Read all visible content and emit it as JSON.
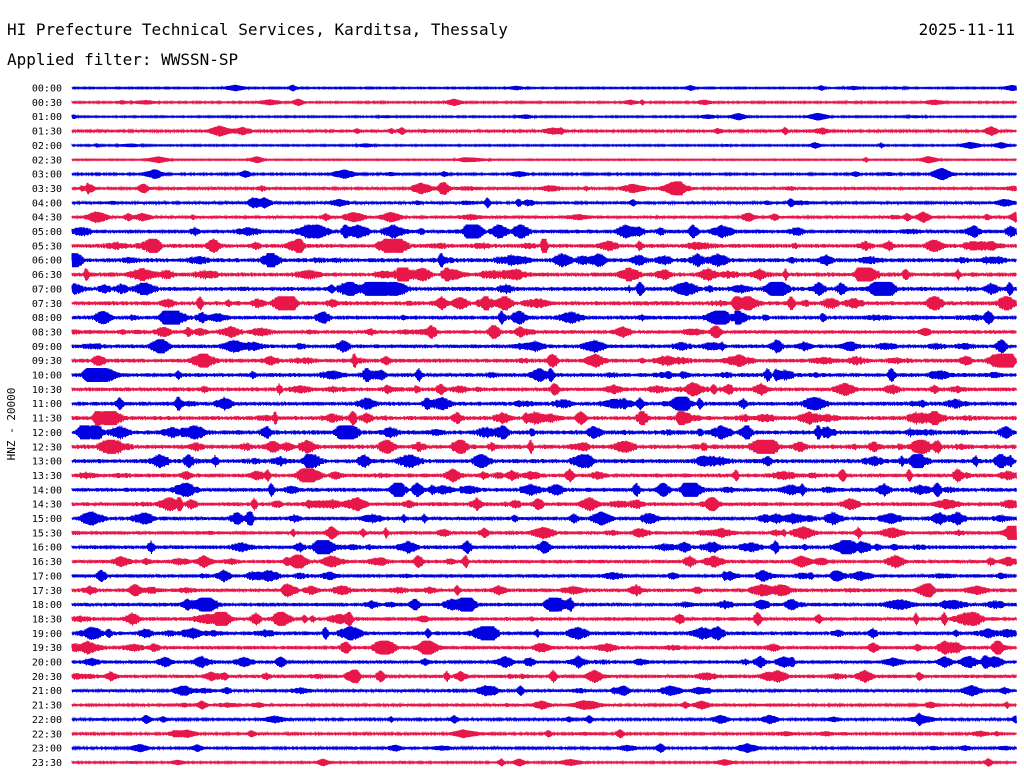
{
  "header": {
    "title": "HI Prefecture Technical Services, Karditsa, Thessaly",
    "date": "2025-11-11",
    "filter": "Applied filter: WWSSN-SP"
  },
  "chart_data": {
    "type": "line",
    "title": "HI Prefecture Technical Services, Karditsa, Thessaly",
    "subtitle": "Applied filter: WWSSN-SP",
    "ylabel": "HNZ - 20000",
    "xlabel": "",
    "grid": false,
    "colors": [
      "#0000e0",
      "#e8174a"
    ],
    "row_labels": [
      "00:00",
      "00:30",
      "01:00",
      "01:30",
      "02:00",
      "02:30",
      "03:00",
      "03:30",
      "04:00",
      "04:30",
      "05:00",
      "05:30",
      "06:00",
      "06:30",
      "07:00",
      "07:30",
      "08:00",
      "08:30",
      "09:00",
      "09:30",
      "10:00",
      "10:30",
      "11:00",
      "11:30",
      "12:00",
      "12:30",
      "13:00",
      "13:30",
      "14:00",
      "14:30",
      "15:00",
      "15:30",
      "16:00",
      "16:30",
      "17:00",
      "17:30",
      "18:00",
      "18:30",
      "19:00",
      "19:30",
      "20:00",
      "20:30",
      "21:00",
      "21:30",
      "22:00",
      "22:30",
      "23:00",
      "23:30"
    ],
    "activity_levels": [
      0.15,
      0.2,
      0.15,
      0.35,
      0.15,
      0.1,
      0.25,
      0.45,
      0.4,
      0.45,
      0.7,
      0.75,
      0.8,
      0.8,
      0.8,
      0.8,
      0.7,
      0.65,
      0.65,
      0.75,
      0.75,
      0.7,
      0.75,
      0.8,
      0.85,
      0.85,
      0.8,
      0.7,
      0.75,
      0.7,
      0.7,
      0.6,
      0.7,
      0.6,
      0.6,
      0.65,
      0.65,
      0.65,
      0.7,
      0.6,
      0.6,
      0.6,
      0.45,
      0.35,
      0.35,
      0.3,
      0.3,
      0.2
    ]
  }
}
